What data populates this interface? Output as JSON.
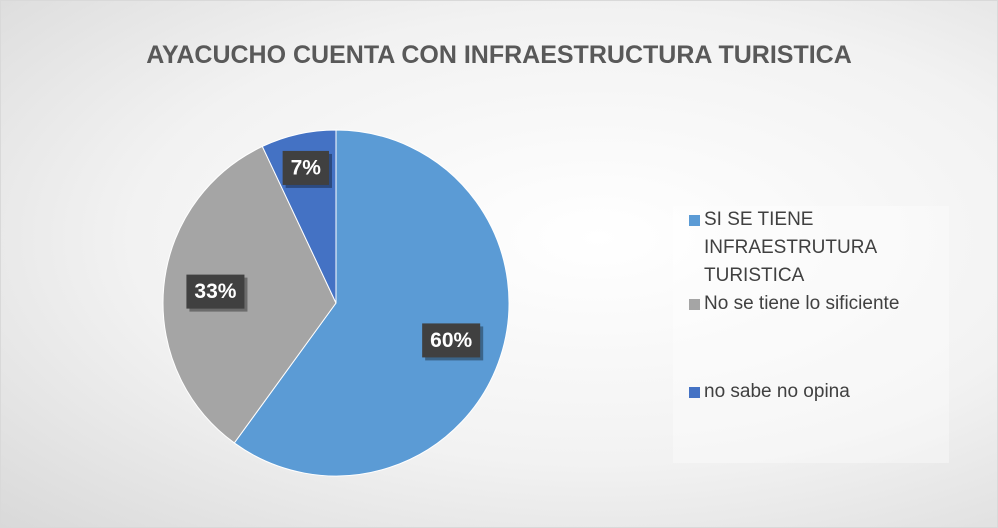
{
  "chart_data": {
    "type": "pie",
    "title": "AYACUCHO CUENTA CON INFRAESTRUCTURA TURISTICA",
    "categories": [
      "SI SE TIENE INFRAESTRUTURA TURISTICA",
      "No se tiene lo sificiente",
      "no sabe no opina"
    ],
    "values": [
      60,
      33,
      7
    ],
    "value_labels": [
      "60%",
      "33%",
      "7%"
    ],
    "colors": [
      "#5b9bd5",
      "#a5a5a5",
      "#4472c4"
    ],
    "legend": "right"
  }
}
